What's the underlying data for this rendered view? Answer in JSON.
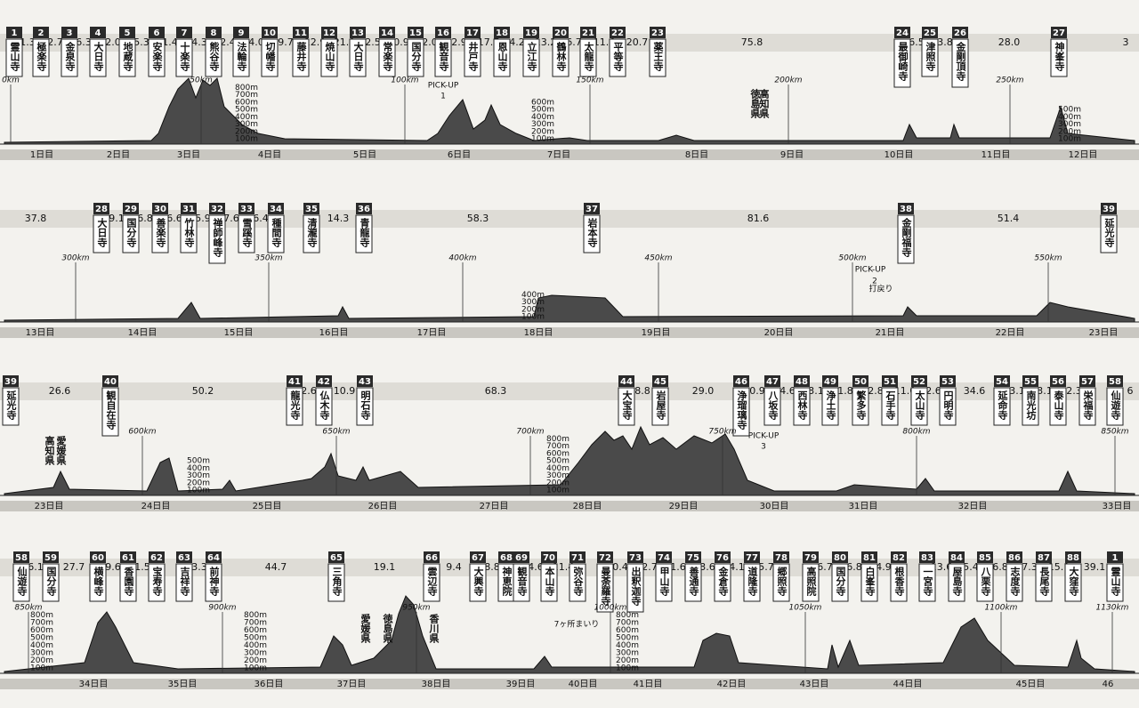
{
  "rows": [
    {
      "temples": [
        {
          "num": "1",
          "name": "霊山寺"
        },
        {
          "num": "2",
          "name": "極楽寺"
        },
        {
          "num": "3",
          "name": "金泉寺"
        },
        {
          "num": "4",
          "name": "大日寺"
        },
        {
          "num": "5",
          "name": "地蔵寺"
        },
        {
          "num": "6",
          "name": "安楽寺"
        },
        {
          "num": "7",
          "name": "十楽寺"
        },
        {
          "num": "8",
          "name": "熊谷寺"
        },
        {
          "num": "9",
          "name": "法輪寺"
        },
        {
          "num": "10",
          "name": "切幡寺"
        },
        {
          "num": "11",
          "name": "藤井寺"
        },
        {
          "num": "12",
          "name": "焼山寺"
        },
        {
          "num": "13",
          "name": "大日寺"
        },
        {
          "num": "14",
          "name": "常楽寺"
        },
        {
          "num": "15",
          "name": "国分寺"
        },
        {
          "num": "16",
          "name": "観音寺"
        },
        {
          "num": "17",
          "name": "井戸寺"
        },
        {
          "num": "18",
          "name": "恩山寺"
        },
        {
          "num": "19",
          "name": "立江寺"
        },
        {
          "num": "20",
          "name": "鶴林寺"
        },
        {
          "num": "21",
          "name": "太龍寺"
        },
        {
          "num": "22",
          "name": "平等寺"
        },
        {
          "num": "23",
          "name": "薬王寺"
        },
        {
          "num": "24",
          "name": "最御崎寺"
        },
        {
          "num": "25",
          "name": "津照寺"
        },
        {
          "num": "26",
          "name": "金剛頂寺"
        },
        {
          "num": "27",
          "name": "神峯寺"
        }
      ],
      "distances": [
        "1.3",
        "2.7",
        "6.3",
        "2.0",
        "5.3",
        "1.4",
        "4.3",
        "2.4",
        "4.0",
        "9.7",
        "12.9",
        "21.9",
        "2.5",
        "0.9",
        "2.0",
        "2.9",
        "17.7",
        "4.2",
        "13.2",
        "6.7",
        "11.6",
        "20.7",
        "75.8",
        "6.5",
        "3.8",
        "28.0",
        "3"
      ],
      "days": [
        "1日目",
        "2日目",
        "3日目",
        "4日目",
        "5日目",
        "6日目",
        "7日目",
        "8日目",
        "9日目",
        "10日目",
        "11日目",
        "12日目"
      ],
      "km": [
        "0km",
        "50km",
        "100km",
        "150km",
        "200km",
        "250km"
      ],
      "scales": [
        [
          "800m",
          "700m",
          "600m",
          "500m",
          "400m",
          "300m",
          "200m",
          "100m"
        ],
        [
          "600m",
          "500m",
          "400m",
          "300m",
          "200m",
          "100m"
        ],
        [
          "500m",
          "400m",
          "300m",
          "200m",
          "100m"
        ]
      ],
      "notes": [
        "PICK-UP",
        "1",
        "徳島県",
        "高知県"
      ]
    },
    {
      "temples": [
        {
          "num": "28",
          "name": "大日寺"
        },
        {
          "num": "29",
          "name": "国分寺"
        },
        {
          "num": "30",
          "name": "善楽寺"
        },
        {
          "num": "31",
          "name": "竹林寺"
        },
        {
          "num": "32",
          "name": "禅師峰寺"
        },
        {
          "num": "33",
          "name": "雪蹊寺"
        },
        {
          "num": "34",
          "name": "種間寺"
        },
        {
          "num": "35",
          "name": "清瀧寺"
        },
        {
          "num": "36",
          "name": "青龍寺"
        },
        {
          "num": "37",
          "name": "岩本寺"
        },
        {
          "num": "38",
          "name": "金剛福寺"
        },
        {
          "num": "39",
          "name": "延光寺"
        }
      ],
      "distances": [
        "37.8",
        "9.1",
        "6.8",
        "6.6",
        "5.9",
        "7.6",
        "6.4",
        "14.3",
        "58.3",
        "81.6",
        "51.4"
      ],
      "days": [
        "13日目",
        "14日目",
        "15日目",
        "16日目",
        "17日目",
        "18日目",
        "19日目",
        "20日目",
        "21日目",
        "22日目",
        "23日目"
      ],
      "km": [
        "300km",
        "350km",
        "400km",
        "450km",
        "500km",
        "550km"
      ],
      "scales": [
        [
          "400m",
          "300m",
          "200m",
          "100m"
        ]
      ],
      "notes": [
        "PICK-UP",
        "2",
        "打戻り"
      ]
    },
    {
      "temples": [
        {
          "num": "39",
          "name": "延光寺"
        },
        {
          "num": "40",
          "name": "観自在寺"
        },
        {
          "num": "41",
          "name": "龍光寺"
        },
        {
          "num": "42",
          "name": "仏木寺"
        },
        {
          "num": "43",
          "name": "明石寺"
        },
        {
          "num": "44",
          "name": "大宝寺"
        },
        {
          "num": "45",
          "name": "岩屋寺"
        },
        {
          "num": "46",
          "name": "浄瑠璃寺"
        },
        {
          "num": "47",
          "name": "八坂寺"
        },
        {
          "num": "48",
          "name": "西林寺"
        },
        {
          "num": "49",
          "name": "浄土寺"
        },
        {
          "num": "50",
          "name": "繁多寺"
        },
        {
          "num": "51",
          "name": "石手寺"
        },
        {
          "num": "52",
          "name": "太山寺"
        },
        {
          "num": "53",
          "name": "円明寺"
        },
        {
          "num": "54",
          "name": "延命寺"
        },
        {
          "num": "55",
          "name": "南光坊"
        },
        {
          "num": "56",
          "name": "泰山寺"
        },
        {
          "num": "57",
          "name": "栄福寺"
        },
        {
          "num": "58",
          "name": "仙遊寺"
        }
      ],
      "distances": [
        "26.6",
        "50.2",
        "2.6",
        "10.9",
        "68.3",
        "8.8",
        "29.0",
        "0.9",
        "4.6",
        "3.1",
        "1.8",
        "2.8",
        "11.0",
        "2.6",
        "34.6",
        "3.1",
        "3.1",
        "2.3",
        "6"
      ],
      "days": [
        "23日目",
        "24日目",
        "25日目",
        "26日目",
        "27日目",
        "28日目",
        "29日目",
        "30日目",
        "31日目",
        "32日目",
        "33日目"
      ],
      "km": [
        "600km",
        "650km",
        "700km",
        "750km",
        "800km",
        "850km"
      ],
      "scales": [
        [
          "500m",
          "400m",
          "300m",
          "200m",
          "100m"
        ],
        [
          "800m",
          "700m",
          "600m",
          "500m",
          "400m",
          "300m",
          "200m",
          "100m"
        ]
      ],
      "notes": [
        "高知県",
        "愛媛県",
        "PICK-UP",
        "3"
      ]
    },
    {
      "temples": [
        {
          "num": "58",
          "name": "仙遊寺"
        },
        {
          "num": "59",
          "name": "国分寺"
        },
        {
          "num": "60",
          "name": "横峰寺"
        },
        {
          "num": "61",
          "name": "香園寺"
        },
        {
          "num": "62",
          "name": "宝寿寺"
        },
        {
          "num": "63",
          "name": "吉祥寺"
        },
        {
          "num": "64",
          "name": "前神寺"
        },
        {
          "num": "65",
          "name": "三角寺"
        },
        {
          "num": "66",
          "name": "雲辺寺"
        },
        {
          "num": "67",
          "name": "大興寺"
        },
        {
          "num": "68",
          "name": "神恵院"
        },
        {
          "num": "69",
          "name": "観音寺"
        },
        {
          "num": "70",
          "name": "本山寺"
        },
        {
          "num": "71",
          "name": "弥谷寺"
        },
        {
          "num": "72",
          "name": "曼荼羅寺"
        },
        {
          "num": "73",
          "name": "出釈迦寺"
        },
        {
          "num": "74",
          "name": "甲山寺"
        },
        {
          "num": "75",
          "name": "善通寺"
        },
        {
          "num": "76",
          "name": "金倉寺"
        },
        {
          "num": "77",
          "name": "道隆寺"
        },
        {
          "num": "78",
          "name": "郷照寺"
        },
        {
          "num": "79",
          "name": "高照院"
        },
        {
          "num": "80",
          "name": "国分寺"
        },
        {
          "num": "81",
          "name": "白峯寺"
        },
        {
          "num": "82",
          "name": "根香寺"
        },
        {
          "num": "83",
          "name": "一宮寺"
        },
        {
          "num": "84",
          "name": "屋島寺"
        },
        {
          "num": "85",
          "name": "八栗寺"
        },
        {
          "num": "86",
          "name": "志度寺"
        },
        {
          "num": "87",
          "name": "長尾寺"
        },
        {
          "num": "88",
          "name": "大窪寺"
        },
        {
          "num": "1",
          "name": "霊山寺"
        }
      ],
      "distances": [
        "6.1",
        "27.7",
        "9.6",
        "1.5",
        "3.3",
        "44.7",
        "19.1",
        "9.4",
        "8.8",
        "4.6",
        "11.4",
        "0.4",
        "2.7",
        "1.6",
        "3.6",
        "4.1",
        "5.7",
        "6.7",
        "6.8",
        "4.9",
        "13.6",
        "5.4",
        "6.8",
        "7.3",
        "15.1",
        "39.1"
      ],
      "days": [
        "34日目",
        "35日目",
        "36日目",
        "37日目",
        "38日目",
        "39日目",
        "40日目",
        "41日目",
        "42日目",
        "43日目",
        "44日目",
        "45日目",
        "46"
      ],
      "km": [
        "850km",
        "900km",
        "950km",
        "1000km",
        "1050km",
        "1100km",
        "1130km"
      ],
      "scales": [
        [
          "800m",
          "700m",
          "600m",
          "500m",
          "400m",
          "300m",
          "200m",
          "100m"
        ],
        [
          "800m",
          "700m",
          "600m",
          "500m",
          "400m",
          "300m",
          "200m",
          "100m"
        ],
        [
          "800m",
          "700m",
          "600m",
          "500m",
          "400m",
          "300m",
          "200m",
          "100m"
        ]
      ],
      "notes": [
        "愛媛県",
        "徳島県",
        "香川県",
        "7ヶ所まいり"
      ]
    }
  ]
}
